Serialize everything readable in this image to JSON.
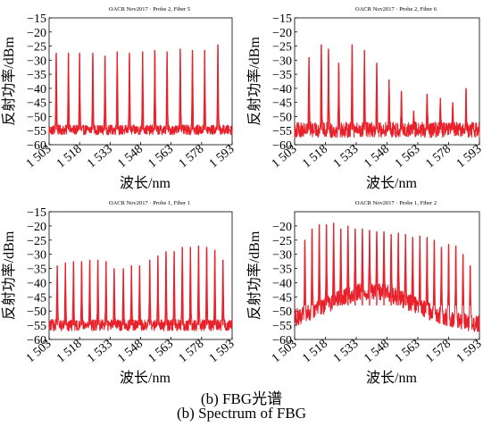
{
  "figure": {
    "caption_zh": "(b) FBG光谱",
    "caption_en": "(b) Spectrum of FBG"
  },
  "chart_data": [
    {
      "type": "line",
      "title": "OACR Nov2017 · Probe 2, Fiber 5",
      "xlabel": "波长/nm",
      "ylabel": "反射功率/dBm",
      "xlim": [
        1503,
        1593
      ],
      "ylim": [
        -60,
        -15
      ],
      "xticks": [
        "1 503",
        "1 518",
        "1 533",
        "1 548",
        "1 563",
        "1 578",
        "1 593"
      ],
      "yticks": [
        "-15",
        "-20",
        "-25",
        "-30",
        "-35",
        "-40",
        "-45",
        "-50",
        "-55",
        "-60"
      ],
      "grid": false,
      "color": "#e8202a",
      "noise_floor": [
        -56.5,
        -53
      ],
      "series": [
        {
          "name": "",
          "peaks_x": [
            1506.5,
            1512.5,
            1518.0,
            1524.5,
            1530.5,
            1536.5,
            1542.5,
            1549.0,
            1555.0,
            1561.0,
            1567.5,
            1573.5,
            1579.5,
            1586.0
          ],
          "peaks_y": [
            -27.5,
            -27.5,
            -27.5,
            -27.5,
            -28.5,
            -27,
            -27.5,
            -27,
            -26.5,
            -27,
            -26,
            -26.5,
            -26.5,
            -24.5
          ]
        }
      ]
    },
    {
      "type": "line",
      "title": "OACR Nov2017 · Probe 2, Fiber 6",
      "xlabel": "波长/nm",
      "ylabel": "反射功率/dBm",
      "xlim": [
        1503,
        1593
      ],
      "ylim": [
        -60,
        -15
      ],
      "xticks": [
        "1 503",
        "1 518",
        "1 533",
        "1 548",
        "1 563",
        "1 578",
        "1 593"
      ],
      "yticks": [
        "-15",
        "-20",
        "-25",
        "-30",
        "-35",
        "-40",
        "-45",
        "-50",
        "-55",
        "-60"
      ],
      "grid": false,
      "color": "#e8202a",
      "noise_floor": [
        -57.5,
        -52
      ],
      "series": [
        {
          "name": "",
          "peaks_x": [
            1510.0,
            1516.0,
            1519.5,
            1524.5,
            1531.0,
            1537.0,
            1543.0,
            1549.0,
            1555.0,
            1561.0,
            1567.5,
            1574.0,
            1580.0,
            1586.5
          ],
          "peaks_y": [
            -29,
            -24.5,
            -26,
            -31,
            -24.5,
            -26.5,
            -31,
            -37,
            -41,
            -48,
            -42,
            -43.5,
            -45,
            -40
          ]
        }
      ]
    },
    {
      "type": "line",
      "title": "OACR Nov2017 · Probe 1, Fiber 1",
      "xlabel": "波长/nm",
      "ylabel": "反射功率/dBm",
      "xlim": [
        1503,
        1593
      ],
      "ylim": [
        -60,
        -15
      ],
      "xticks": [
        "1 503",
        "1 518",
        "1 533",
        "1 548",
        "1 563",
        "1 578",
        "1 593"
      ],
      "yticks": [
        "-15",
        "-20",
        "-25",
        "-30",
        "-35",
        "-40",
        "-45",
        "-50",
        "-55",
        "-60"
      ],
      "grid": false,
      "color": "#e8202a",
      "noise_floor": [
        -57,
        -53
      ],
      "series": [
        {
          "name": "",
          "peaks_x": [
            1507,
            1511,
            1515,
            1519,
            1523,
            1527,
            1531,
            1535,
            1539.5,
            1543.5,
            1547.5,
            1552.5,
            1556.5,
            1560.5,
            1564.5,
            1568.5,
            1572.5,
            1576.5,
            1580.5,
            1584.5,
            1588.5
          ],
          "peaks_y": [
            -34,
            -33,
            -32.5,
            -32.5,
            -32,
            -32,
            -32.5,
            -35,
            -35,
            -34,
            -34,
            -32,
            -30.5,
            -29,
            -29,
            -27.5,
            -27.5,
            -27,
            -27.5,
            -28.5,
            -32
          ]
        }
      ]
    },
    {
      "type": "line",
      "title": "OACR Nov2017 · Probe 1, Fiber 2",
      "xlabel": "波长/nm",
      "ylabel": "反射功率/dBm",
      "xlim": [
        1503,
        1593
      ],
      "ylim": [
        -60,
        -15
      ],
      "xticks": [
        "1 503",
        "1 518",
        "1 533",
        "1 548",
        "1 563",
        "1 578",
        "1 593"
      ],
      "yticks": [
        "-20",
        "-25",
        "-30",
        "-35",
        "-40",
        "-45",
        "-50",
        "-55",
        "-60"
      ],
      "grid": false,
      "color": "#e8202a",
      "noise_floor": [
        -56,
        -40
      ],
      "series": [
        {
          "name": "",
          "peaks_x": [
            1508,
            1511.5,
            1515,
            1518.5,
            1522,
            1525.5,
            1529,
            1532.5,
            1536,
            1539.5,
            1543,
            1546.5,
            1550,
            1553.5,
            1557,
            1560.5,
            1564,
            1567.5,
            1571,
            1574.5,
            1578,
            1581.5,
            1585,
            1588.5
          ],
          "peaks_y": [
            -25,
            -21,
            -19.5,
            -19.5,
            -19,
            -21,
            -20,
            -21,
            -21,
            -21.5,
            -22,
            -22,
            -23,
            -22.5,
            -23,
            -24,
            -23.5,
            -24,
            -25,
            -27.5,
            -26.5,
            -27,
            -30,
            -34
          ]
        }
      ]
    }
  ]
}
